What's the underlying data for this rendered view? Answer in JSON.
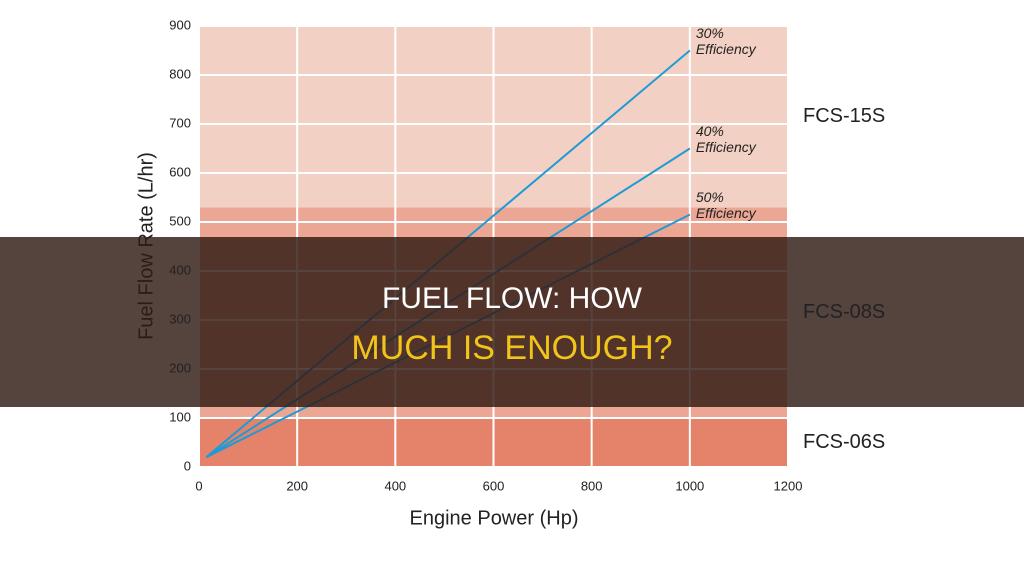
{
  "chart_data": {
    "type": "line",
    "title": [
      "FUEL FLOW: HOW",
      "MUCH IS ENOUGH?"
    ],
    "x_label": "Engine Power (Hp)",
    "y_label": "Fuel Flow Rate (L/hr)",
    "xlim": [
      0,
      1200
    ],
    "xticks": [
      0,
      200,
      400,
      600,
      800,
      1000,
      1200
    ],
    "ylim": [
      0,
      900
    ],
    "yticks": [
      0,
      100,
      200,
      300,
      400,
      500,
      600,
      700,
      800,
      900
    ],
    "grid": true,
    "bands": [
      {
        "label": "FCS-06S",
        "from": 0,
        "to": 100,
        "color": "#e4826a"
      },
      {
        "label": "FCS-08S",
        "from": 100,
        "to": 530,
        "color": "#eba793"
      },
      {
        "label": "FCS-15S",
        "from": 530,
        "to": 900,
        "color": "#f3d0c4"
      }
    ],
    "series": [
      {
        "name": "30% Efficiency",
        "color": "#1e9bd7",
        "x": [
          15,
          1000
        ],
        "values": [
          20,
          850
        ]
      },
      {
        "name": "40% Efficiency",
        "color": "#1e9bd7",
        "x": [
          15,
          1000
        ],
        "values": [
          20,
          650
        ]
      },
      {
        "name": "50% Efficiency",
        "color": "#1e9bd7",
        "x": [
          15,
          1000
        ],
        "values": [
          20,
          515
        ]
      }
    ]
  }
}
